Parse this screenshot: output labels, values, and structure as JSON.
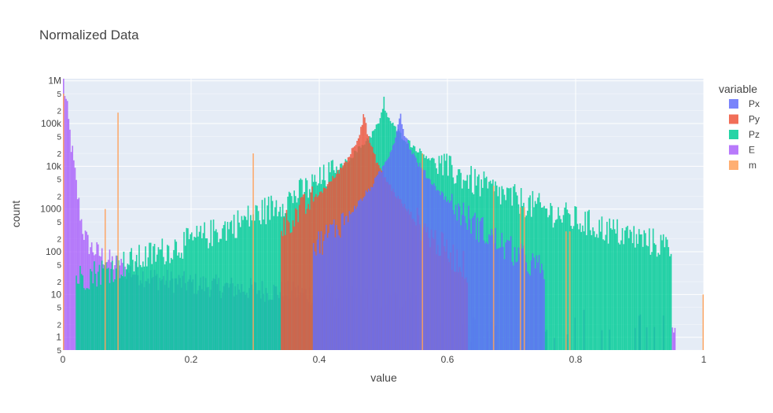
{
  "chart_data": {
    "type": "bar",
    "title": "Normalized Data",
    "xlabel": "value",
    "ylabel": "count",
    "y_scale": "log",
    "xlim": [
      0,
      1
    ],
    "ylim_log10": [
      -0.3,
      6.05
    ],
    "grid": true,
    "legend_position": "right",
    "legend_title": "variable",
    "x_ticks": [
      {
        "value": 0,
        "label": "0"
      },
      {
        "value": 0.2,
        "label": "0.2"
      },
      {
        "value": 0.4,
        "label": "0.4"
      },
      {
        "value": 0.6,
        "label": "0.6"
      },
      {
        "value": 0.8,
        "label": "0.8"
      },
      {
        "value": 1,
        "label": "1"
      }
    ],
    "y_major_ticks": [
      {
        "value": 1,
        "label": "1"
      },
      {
        "value": 10,
        "label": "10"
      },
      {
        "value": 100,
        "label": "100"
      },
      {
        "value": 1000,
        "label": "1000"
      },
      {
        "value": 10000,
        "label": "10k"
      },
      {
        "value": 100000,
        "label": "100k"
      },
      {
        "value": 1000000,
        "label": "1M"
      }
    ],
    "y_minor_ticks": [
      {
        "value": 0.5,
        "label": "5"
      },
      {
        "value": 2,
        "label": "2"
      },
      {
        "value": 5,
        "label": "5"
      },
      {
        "value": 20,
        "label": "2"
      },
      {
        "value": 50,
        "label": "5"
      },
      {
        "value": 200,
        "label": "2"
      },
      {
        "value": 500,
        "label": "5"
      },
      {
        "value": 2000,
        "label": "2"
      },
      {
        "value": 5000,
        "label": "5"
      },
      {
        "value": 20000,
        "label": "2"
      },
      {
        "value": 50000,
        "label": "5"
      },
      {
        "value": 200000,
        "label": "2"
      },
      {
        "value": 500000,
        "label": "5"
      }
    ],
    "series": [
      {
        "name": "Px",
        "color": "#636efa",
        "opacity": 0.85,
        "peak_x": 0.525,
        "peak_count": 300000,
        "left_slope": 6.2,
        "right_slope": 5.6,
        "range": [
          0.39,
          0.75
        ],
        "background": 0.35
      },
      {
        "name": "Py",
        "color": "#ef553b",
        "opacity": 0.85,
        "peak_x": 0.469,
        "peak_count": 300000,
        "left_slope": 5.4,
        "right_slope": 6.5,
        "range": [
          0.34,
          0.63
        ],
        "background": 0.35
      },
      {
        "name": "Pz",
        "color": "#00cc96",
        "opacity": 0.85,
        "peak_x": 0.5,
        "peak_count": 380000,
        "left_slope": 4.1,
        "right_slope": 3.5,
        "range": [
          0.02,
          0.95
        ],
        "background": 0.8
      },
      {
        "name": "E",
        "color": "#ab63fa",
        "opacity": 0.85,
        "peak_x": 0.0,
        "peak_count": 1000000,
        "range": [
          0.0,
          0.97
        ],
        "background": 2.0
      },
      {
        "name": "m",
        "color": "#ffa15a",
        "opacity": 0.85,
        "spikes": [
          {
            "x": 0.0,
            "count": 500000
          },
          {
            "x": 0.065,
            "count": 1000
          },
          {
            "x": 0.085,
            "count": 180000
          },
          {
            "x": 0.296,
            "count": 20000
          },
          {
            "x": 0.56,
            "count": 20000
          },
          {
            "x": 0.671,
            "count": 3500
          },
          {
            "x": 0.713,
            "count": 1100
          },
          {
            "x": 0.719,
            "count": 1100
          },
          {
            "x": 0.784,
            "count": 300
          },
          {
            "x": 0.79,
            "count": 300
          },
          {
            "x": 0.998,
            "count": 10
          }
        ]
      }
    ]
  }
}
